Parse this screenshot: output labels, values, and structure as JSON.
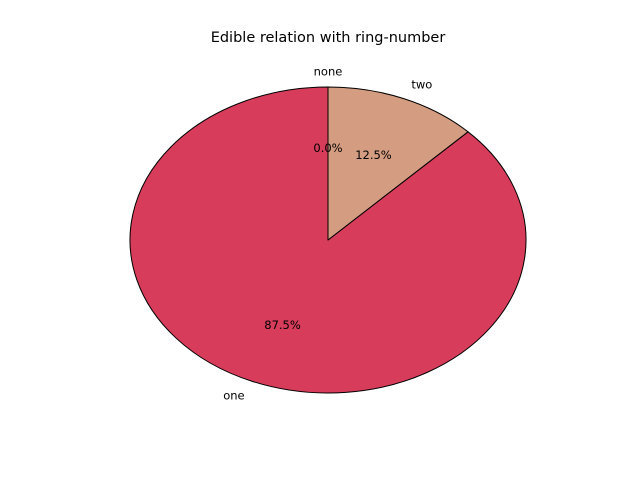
{
  "chart_data": {
    "type": "pie",
    "title": "Edible relation with ring-number",
    "categories": [
      "none",
      "one",
      "two"
    ],
    "values": [
      0.0,
      87.5,
      12.5
    ],
    "pct_labels": [
      "0.0%",
      "87.5%",
      "12.5%"
    ],
    "colors": [
      "#9a3b5c",
      "#d73c5a",
      "#d49c80"
    ],
    "edge_color": "#000000",
    "legend": "none"
  }
}
